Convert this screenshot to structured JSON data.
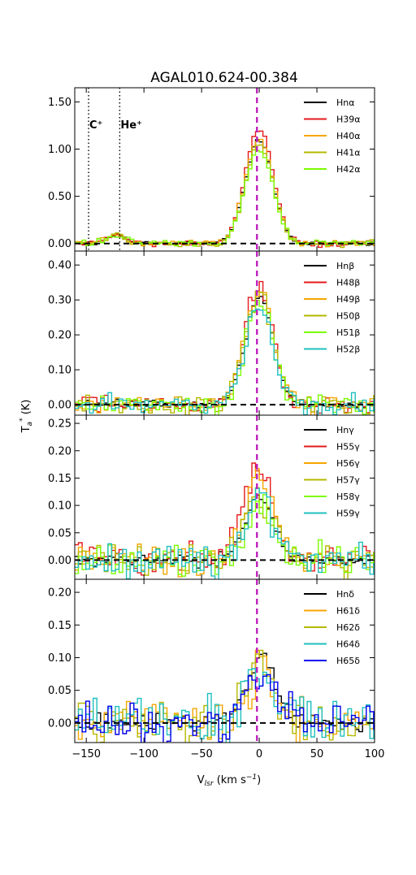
{
  "figure": {
    "title": "AGAL010.624-00.384",
    "xlabel": {
      "main": "V",
      "sub": "lsr",
      "rest": " (km s",
      "sup": "−1",
      "close": ")"
    },
    "ylabel": {
      "main": "T",
      "sub": "a",
      "sup": "*",
      "rest": " (K)"
    }
  },
  "chart_data": [
    {
      "type": "line",
      "panel": "alpha",
      "xlim": [
        -160,
        100
      ],
      "ylim": [
        -0.08,
        1.65
      ],
      "yticks": [
        0.0,
        0.5,
        1.0,
        1.5
      ],
      "ytick_labels": [
        "0.00",
        "0.50",
        "1.00",
        "1.50"
      ],
      "xticks": [
        -150,
        -100,
        -50,
        0,
        50,
        100
      ],
      "xtick_labels": [
        "−150",
        "−100",
        "−50",
        "0",
        "50",
        "100"
      ],
      "show_xtick_labels": false,
      "legend_position": "top-right",
      "annotations": [
        {
          "label": "C⁺",
          "x": -148
        },
        {
          "label": "He⁺",
          "x": -121
        }
      ],
      "vline_x": -2,
      "hline_y": 0,
      "profile": {
        "center": 0,
        "sigma": 12,
        "bumps": [
          {
            "center": -123,
            "sigma": 8,
            "amp": 0.09
          }
        ]
      },
      "series": [
        {
          "name": "Hnα",
          "color": "#000000",
          "amp": 1.1,
          "noise": 0.015,
          "seed": 1
        },
        {
          "name": "H39α",
          "color": "#e41a1c",
          "amp": 1.22,
          "noise": 0.03,
          "seed": 2
        },
        {
          "name": "H40α",
          "color": "#f5a500",
          "amp": 1.12,
          "noise": 0.03,
          "seed": 3
        },
        {
          "name": "H41α",
          "color": "#b5b800",
          "amp": 1.05,
          "noise": 0.03,
          "seed": 4
        },
        {
          "name": "H42α",
          "color": "#7cfc00",
          "amp": 1.0,
          "noise": 0.03,
          "seed": 5
        }
      ]
    },
    {
      "type": "line",
      "panel": "beta",
      "xlim": [
        -160,
        100
      ],
      "ylim": [
        -0.03,
        0.44
      ],
      "yticks": [
        0.0,
        0.1,
        0.2,
        0.3,
        0.4
      ],
      "ytick_labels": [
        "0.00",
        "0.10",
        "0.20",
        "0.30",
        "0.40"
      ],
      "xticks": [
        -150,
        -100,
        -50,
        0,
        50,
        100
      ],
      "xtick_labels": [
        "−150",
        "−100",
        "−50",
        "0",
        "50",
        "100"
      ],
      "show_xtick_labels": false,
      "legend_position": "top-right",
      "vline_x": -2,
      "hline_y": 0,
      "profile": {
        "center": 0,
        "sigma": 12,
        "bumps": []
      },
      "series": [
        {
          "name": "Hnβ",
          "color": "#000000",
          "amp": 0.31,
          "noise": 0.01,
          "seed": 11
        },
        {
          "name": "H48β",
          "color": "#e41a1c",
          "amp": 0.34,
          "noise": 0.025,
          "seed": 12
        },
        {
          "name": "H49β",
          "color": "#f5a500",
          "amp": 0.33,
          "noise": 0.025,
          "seed": 13
        },
        {
          "name": "H50β",
          "color": "#b5b800",
          "amp": 0.32,
          "noise": 0.025,
          "seed": 14
        },
        {
          "name": "H51β",
          "color": "#7cfc00",
          "amp": 0.3,
          "noise": 0.025,
          "seed": 15
        },
        {
          "name": "H52β",
          "color": "#1fbfbf",
          "amp": 0.28,
          "noise": 0.025,
          "seed": 16
        }
      ]
    },
    {
      "type": "line",
      "panel": "gamma",
      "xlim": [
        -160,
        100
      ],
      "ylim": [
        -0.035,
        0.265
      ],
      "yticks": [
        0.0,
        0.05,
        0.1,
        0.15,
        0.2,
        0.25
      ],
      "ytick_labels": [
        "0.00",
        "0.05",
        "0.10",
        "0.15",
        "0.20",
        "0.25"
      ],
      "xticks": [
        -150,
        -100,
        -50,
        0,
        50,
        100
      ],
      "xtick_labels": [
        "−150",
        "−100",
        "−50",
        "0",
        "50",
        "100"
      ],
      "show_xtick_labels": false,
      "legend_position": "top-right",
      "vline_x": -2,
      "hline_y": 0,
      "profile": {
        "center": 0,
        "sigma": 12,
        "bumps": []
      },
      "series": [
        {
          "name": "Hnγ",
          "color": "#000000",
          "amp": 0.12,
          "noise": 0.01,
          "seed": 21
        },
        {
          "name": "H55γ",
          "color": "#e41a1c",
          "amp": 0.17,
          "noise": 0.025,
          "seed": 22
        },
        {
          "name": "H56γ",
          "color": "#f5a500",
          "amp": 0.15,
          "noise": 0.025,
          "seed": 23
        },
        {
          "name": "H57γ",
          "color": "#b5b800",
          "amp": 0.12,
          "noise": 0.025,
          "seed": 24
        },
        {
          "name": "H58γ",
          "color": "#7cfc00",
          "amp": 0.1,
          "noise": 0.025,
          "seed": 25
        },
        {
          "name": "H59γ",
          "color": "#1fbfbf",
          "amp": 0.1,
          "noise": 0.025,
          "seed": 26
        }
      ]
    },
    {
      "type": "line",
      "panel": "delta",
      "xlim": [
        -160,
        100
      ],
      "ylim": [
        -0.03,
        0.22
      ],
      "yticks": [
        0.0,
        0.05,
        0.1,
        0.15,
        0.2
      ],
      "ytick_labels": [
        "0.00",
        "0.05",
        "0.10",
        "0.15",
        "0.20"
      ],
      "xticks": [
        -150,
        -100,
        -50,
        0,
        50,
        100
      ],
      "xtick_labels": [
        "−150",
        "−100",
        "−50",
        "0",
        "50",
        "100"
      ],
      "show_xtick_labels": true,
      "legend_position": "top-right",
      "vline_x": -2,
      "hline_y": 0,
      "profile": {
        "center": 2,
        "sigma": 13,
        "bumps": []
      },
      "series": [
        {
          "name": "Hnδ",
          "color": "#000000",
          "amp": 0.1,
          "noise": 0.012,
          "seed": 31
        },
        {
          "name": "H61δ",
          "color": "#f5a500",
          "amp": 0.08,
          "noise": 0.028,
          "seed": 32
        },
        {
          "name": "H62δ",
          "color": "#b5b800",
          "amp": 0.08,
          "noise": 0.028,
          "seed": 33
        },
        {
          "name": "H64δ",
          "color": "#1fbfbf",
          "amp": 0.08,
          "noise": 0.028,
          "seed": 34
        },
        {
          "name": "H65δ",
          "color": "#0000ee",
          "amp": 0.07,
          "noise": 0.028,
          "seed": 35
        }
      ]
    }
  ],
  "styles": {
    "vline_color": "#c020c0",
    "hline_color": "#000000",
    "annotation_line_color": "#000000"
  }
}
